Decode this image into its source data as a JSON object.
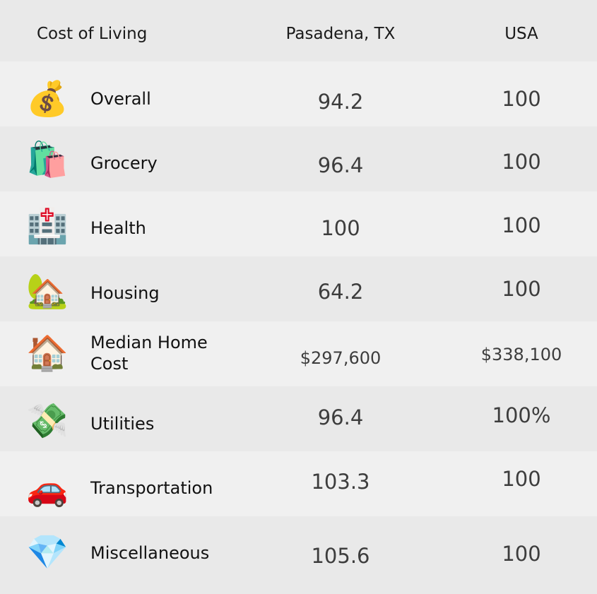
{
  "header": {
    "category": "Cost of Living",
    "city": "Pasadena, TX",
    "national": "USA"
  },
  "rows": [
    {
      "icon": "money-bag-icon",
      "glyph": "💰",
      "label": "Overall",
      "city": "94.2",
      "usa": "100"
    },
    {
      "icon": "shopping-bags-icon",
      "glyph": "🛍️",
      "label": "Grocery",
      "city": "96.4",
      "usa": "100"
    },
    {
      "icon": "hospital-icon",
      "glyph": "🏥",
      "label": "Health",
      "city": "100",
      "usa": "100"
    },
    {
      "icon": "house-with-garden-icon",
      "glyph": "🏡",
      "label": "Housing",
      "city": "64.2",
      "usa": "100"
    },
    {
      "icon": "house-icon",
      "glyph": "🏠",
      "label": "Median Home Cost",
      "city": "$297,600",
      "usa": "$338,100"
    },
    {
      "icon": "money-with-wings-icon",
      "glyph": "💸",
      "label": "Utilities",
      "city": "96.4",
      "usa": "100%"
    },
    {
      "icon": "car-icon",
      "glyph": "🚗",
      "label": "Transportation",
      "city": "103.3",
      "usa": "100"
    },
    {
      "icon": "gem-icon",
      "glyph": "💎",
      "label": "Miscellaneous",
      "city": "105.6",
      "usa": "100"
    }
  ]
}
